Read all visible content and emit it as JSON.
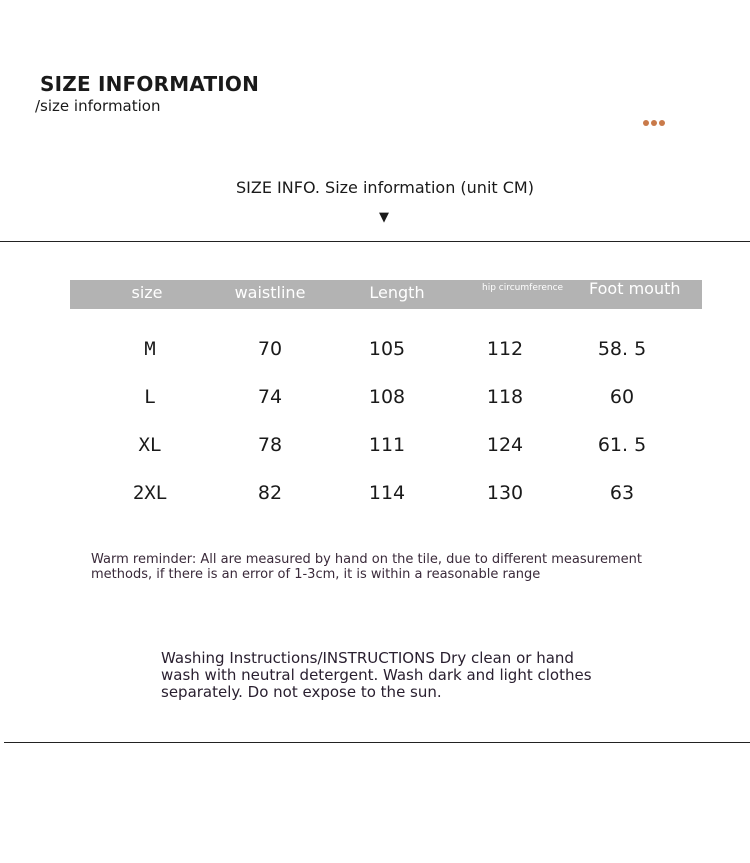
{
  "header": {
    "title": "SIZE INFORMATION",
    "subtitle": "/size information",
    "decoration_color": "#c97a4a"
  },
  "info_line": "SIZE INFO. Size information (unit CM)",
  "arrow_glyph": "▼",
  "table": {
    "columns": [
      "size",
      "waistline",
      "Length",
      "hip circumference",
      "Foot mouth"
    ],
    "rows": [
      [
        "M",
        "70",
        "105",
        "112",
        "58. 5"
      ],
      [
        "L",
        "74",
        "108",
        "118",
        "60"
      ],
      [
        "XL",
        "78",
        "111",
        "124",
        "61. 5"
      ],
      [
        "2XL",
        "82",
        "114",
        "130",
        "63"
      ]
    ],
    "header_color": "#b3b3b3"
  },
  "reminder": "Warm reminder: All are measured by hand on the tile, due to different measurement methods, if there is an error of 1-3cm, it is within a reasonable range",
  "washing": "Washing Instructions/INSTRUCTIONS Dry clean or hand wash with neutral detergent. Wash dark and light clothes separately. Do not expose to the sun."
}
